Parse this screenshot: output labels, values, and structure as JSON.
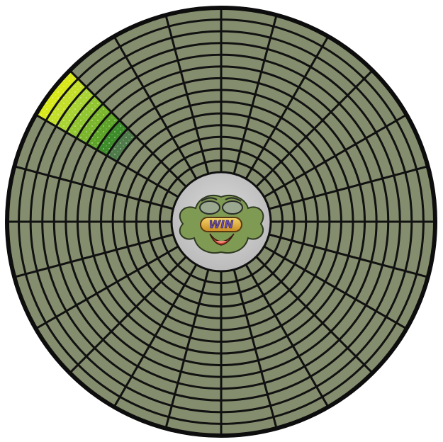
{
  "game": {
    "rings": 14,
    "sectors": 24,
    "lit_sector": 14,
    "lit_cells": [
      {
        "ring": 13,
        "color": "#d8e81a"
      },
      {
        "ring": 12,
        "color": "#c3df2a"
      },
      {
        "ring": 11,
        "color": "#a9d433"
      },
      {
        "ring": 10,
        "color": "#92c631"
      },
      {
        "ring": 9,
        "color": "#7bb62c"
      },
      {
        "ring": 8,
        "color": "#5da428"
      },
      {
        "ring": 7,
        "color": "#3d8c2a"
      },
      {
        "ring": 6,
        "color": "#4f7a4a"
      }
    ]
  },
  "hub": {
    "mascot_icon": "win-frog-face-icon",
    "logo_text": "WIN"
  },
  "colors": {
    "board_fill": "#848e6e",
    "grid_line": "#111111",
    "outer_rim": "#0d0d0d",
    "hub_fill": "#c8c8c8",
    "mascot_green": "#7f9a52",
    "mouth_red": "#c9442f",
    "logo_gold": "#e6b53a"
  }
}
